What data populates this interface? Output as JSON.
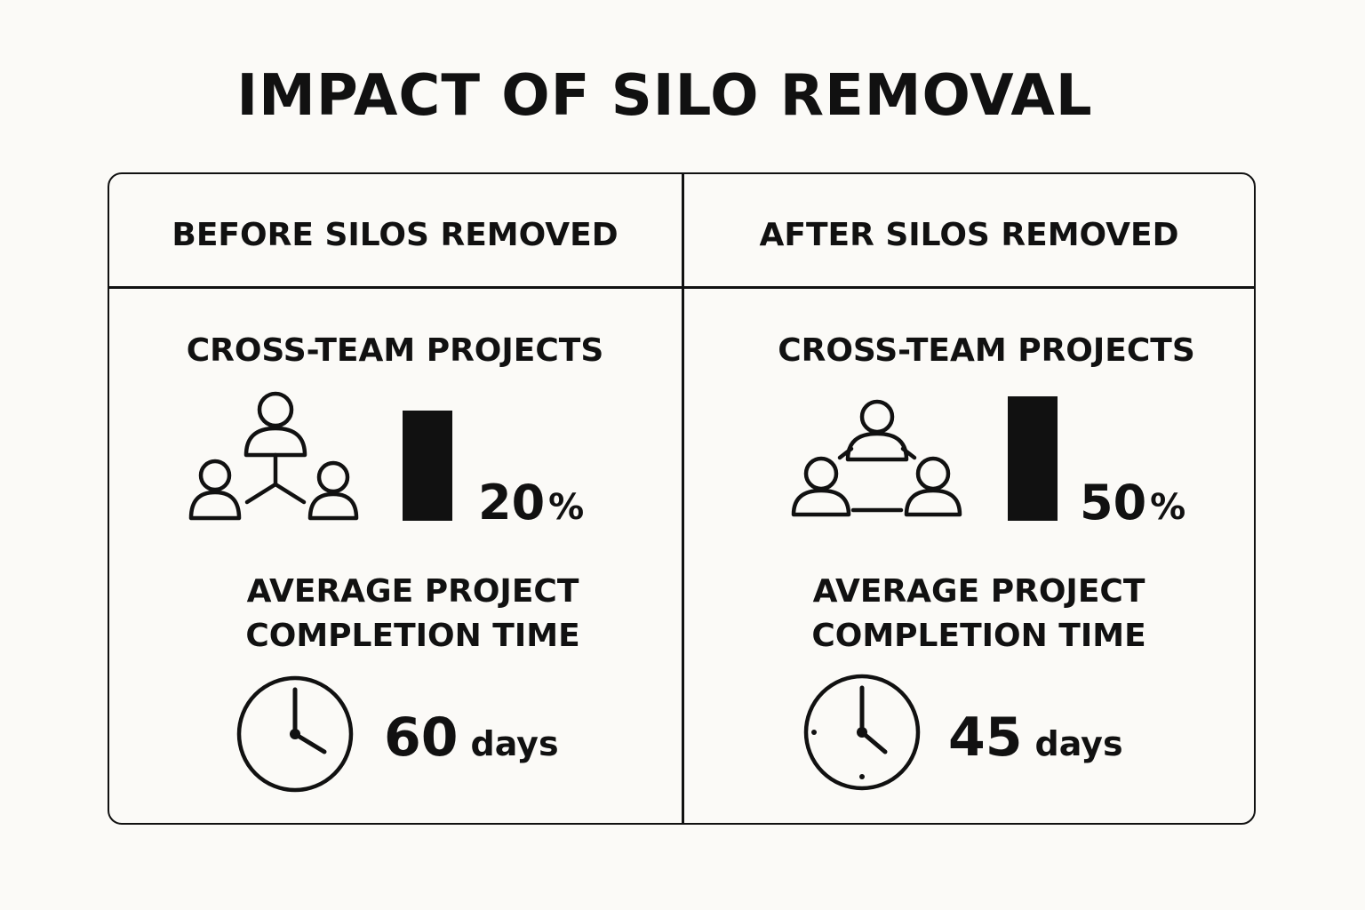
{
  "title": "IMPACT OF SILO REMOVAL",
  "before": {
    "header": "BEFORE SILOS REMOVED",
    "projects_label": "CROSS-TEAM PROJECTS",
    "projects_value": "20",
    "projects_unit": "%",
    "completion_label_line1": "AVERAGE PROJECT",
    "completion_label_line2": "COMPLETION TIME",
    "completion_value": "60",
    "completion_unit": "days",
    "team_icon": "hierarchy-people-icon",
    "clock_icon": "clock-icon"
  },
  "after": {
    "header": "AFTER SILOS REMOVED",
    "projects_label": "CROSS-TEAM PROJECTS",
    "projects_value": "50",
    "projects_unit": "%",
    "completion_label_line1": "AVERAGE PROJECT",
    "completion_label_line2": "COMPLETION TIME",
    "completion_value": "45",
    "completion_unit": "days",
    "team_icon": "connected-people-icon",
    "clock_icon": "clock-icon"
  },
  "colors": {
    "background": "#fbfaf7",
    "ink": "#111111"
  }
}
